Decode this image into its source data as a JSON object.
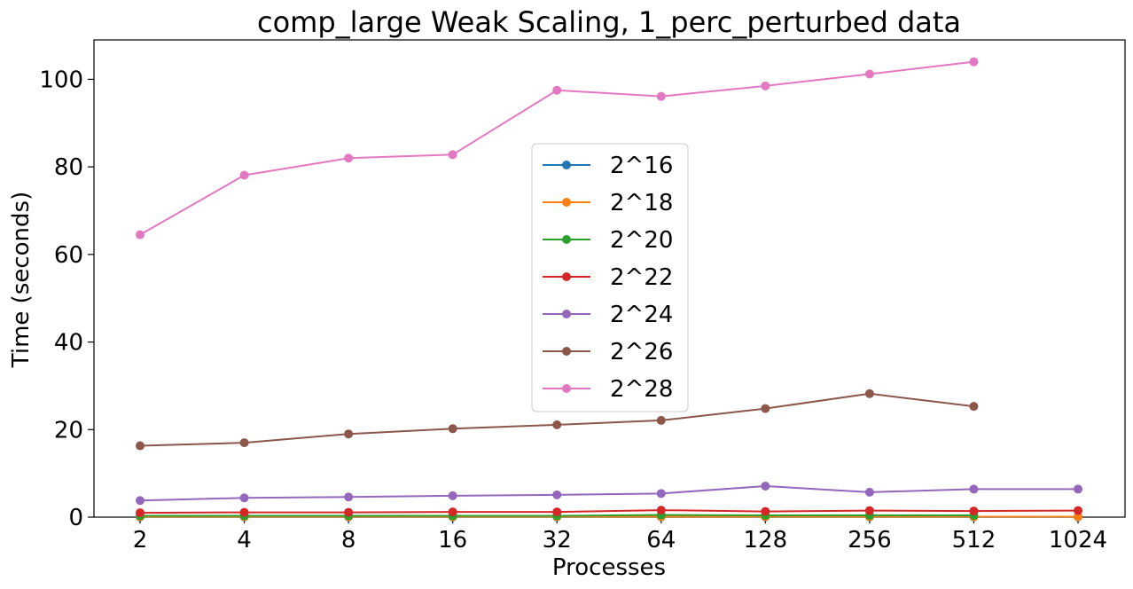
{
  "chart_data": {
    "type": "line",
    "title": "comp_large Weak Scaling, 1_perc_perturbed data",
    "xlabel": "Processes",
    "ylabel": "Time (seconds)",
    "categories": [
      "2",
      "4",
      "8",
      "16",
      "32",
      "64",
      "128",
      "256",
      "512",
      "1024"
    ],
    "yticks": [
      0,
      20,
      40,
      60,
      80,
      100
    ],
    "ylim": [
      0,
      109
    ],
    "legend_position": "center",
    "grid": false,
    "series": [
      {
        "name": "2^16",
        "color": "#1f77b4",
        "values": [
          0.05,
          0.05,
          0.05,
          0.05,
          0.05,
          0.05,
          0.05,
          0.05,
          0.05,
          0.05
        ]
      },
      {
        "name": "2^18",
        "color": "#ff7f0e",
        "values": [
          0.1,
          0.1,
          0.1,
          0.1,
          0.1,
          0.1,
          0.1,
          0.1,
          0.1,
          0.1
        ]
      },
      {
        "name": "2^20",
        "color": "#2ca02c",
        "values": [
          0.3,
          0.3,
          0.3,
          0.3,
          0.3,
          0.5,
          0.4,
          0.4,
          0.4,
          null
        ]
      },
      {
        "name": "2^22",
        "color": "#d62728",
        "values": [
          1.0,
          1.1,
          1.1,
          1.2,
          1.2,
          1.6,
          1.3,
          1.5,
          1.4,
          1.5
        ]
      },
      {
        "name": "2^24",
        "color": "#9467bd",
        "values": [
          3.8,
          4.4,
          4.6,
          4.9,
          5.1,
          5.4,
          7.1,
          5.7,
          6.4,
          6.4
        ]
      },
      {
        "name": "2^26",
        "color": "#8c564b",
        "values": [
          16.3,
          17.0,
          19.0,
          20.2,
          21.1,
          22.1,
          24.8,
          28.2,
          25.3,
          null
        ]
      },
      {
        "name": "2^28",
        "color": "#e377c2",
        "values": [
          64.5,
          78.1,
          82.0,
          82.8,
          97.5,
          96.1,
          98.5,
          101.2,
          104.0,
          null
        ]
      }
    ]
  }
}
